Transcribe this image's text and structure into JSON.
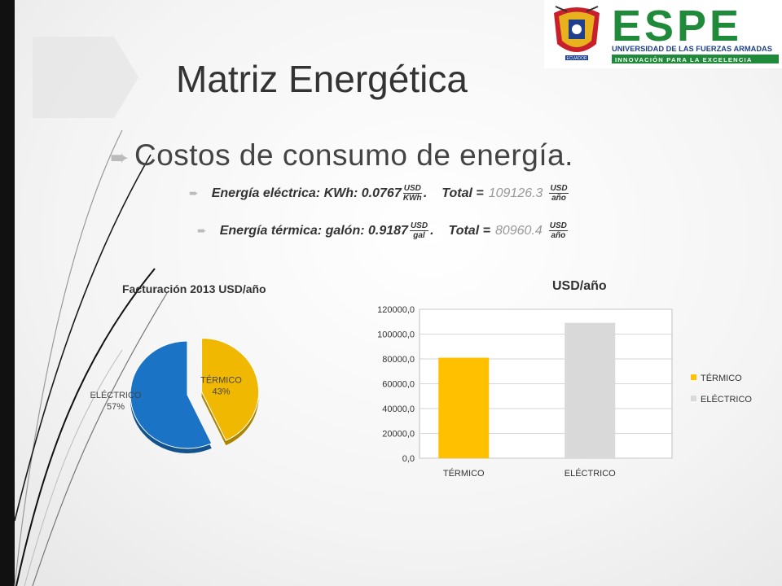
{
  "slide": {
    "title": "Matriz Energética",
    "subtitle": "Costos de consumo de energía.",
    "line1": {
      "label": "Energía eléctrica: KWh: 0.0767",
      "unit_num": "USD",
      "unit_den": "KWh",
      "sep": ".",
      "total_label": "Total =",
      "total_value": "109126.3",
      "total_num": "USD",
      "total_den": "año"
    },
    "line2": {
      "label": "Energía térmica: galón: 0.9187",
      "unit_num": "USD",
      "unit_den": "gal",
      "sep": ".",
      "total_label": "Total =",
      "total_value": "80960.4",
      "total_num": "USD",
      "total_den": "año"
    }
  },
  "logo": {
    "acronym": "ESPE",
    "line1": "UNIVERSIDAD DE LAS FUERZAS ARMADAS",
    "line2": "INNOVACIÓN PARA LA EXCELENCIA",
    "seal_text": "ECUADOR",
    "colors": {
      "green": "#1f8a3a",
      "blue": "#1d3f8c",
      "red": "#c8202b",
      "gold": "#e8b21e"
    }
  },
  "chart_data": [
    {
      "type": "pie",
      "title": "Facturación 2013 USD/año",
      "slices": [
        {
          "label": "TÉRMICO",
          "percent_label": "43%",
          "value": 43,
          "color": "#f0b800",
          "exploded": true
        },
        {
          "label": "ELÉCTRICO",
          "percent_label": "57%",
          "value": 57,
          "color": "#1a73c4"
        }
      ]
    },
    {
      "type": "bar",
      "title": "USD/año",
      "categories": [
        "TÉRMICO",
        "ELÉCTRICO"
      ],
      "values": [
        80960.4,
        109126.3
      ],
      "colors": [
        "#ffc000",
        "#d9d9d9"
      ],
      "ylim": [
        0,
        120000
      ],
      "yticks": [
        "0,0",
        "20000,0",
        "40000,0",
        "60000,0",
        "80000,0",
        "100000,0",
        "120000,0"
      ],
      "grid": true,
      "legend": [
        "TÉRMICO",
        "ELÉCTRICO"
      ],
      "legend_position": "right"
    }
  ]
}
